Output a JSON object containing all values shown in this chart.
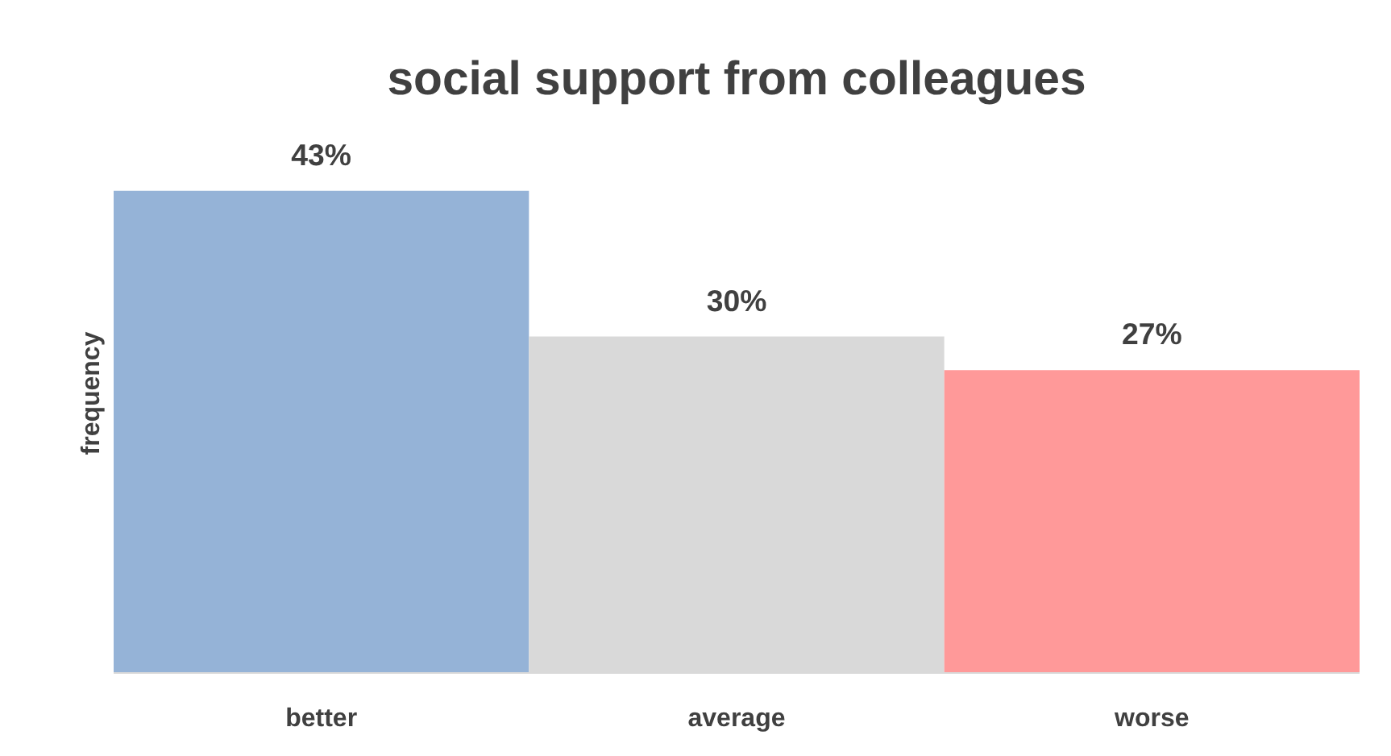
{
  "chart_data": {
    "type": "bar",
    "title": "social support from colleagues",
    "ylabel": "frequency",
    "categories": [
      "better",
      "average",
      "worse"
    ],
    "values": [
      43,
      30,
      27
    ],
    "colors": [
      "#95b3d7",
      "#d9d9d9",
      "#ff9999"
    ],
    "value_labels": [
      "43%",
      "30%",
      "27%"
    ]
  }
}
